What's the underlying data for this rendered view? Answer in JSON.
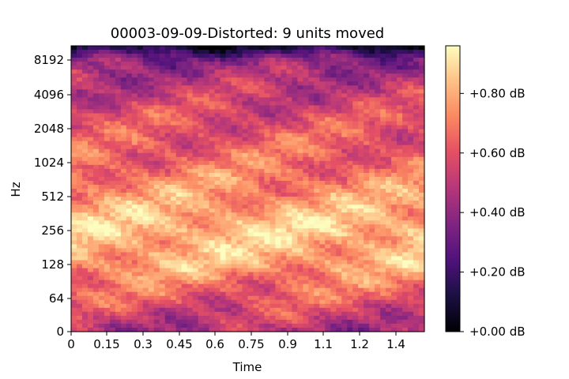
{
  "chart_data": {
    "type": "heatmap",
    "title": "00003-09-09-Distorted: 9 units moved",
    "xlabel": "Time",
    "ylabel": "Hz",
    "x_range": [
      0,
      1.5
    ],
    "x_ticks": [
      "0",
      "0.15",
      "0.3",
      "0.45",
      "0.6",
      "0.75",
      "0.9",
      "1.1",
      "1.2",
      "1.4"
    ],
    "y_scale": "log2 above 64 Hz, linear below",
    "y_ticks": [
      "0",
      "64",
      "128",
      "256",
      "512",
      "1024",
      "2048",
      "4096",
      "8192"
    ],
    "colormap": "magma",
    "colorbar": {
      "range": [
        0.0,
        0.96
      ],
      "ticks": [
        "+0.00 dB",
        "+0.20 dB",
        "+0.40 dB",
        "+0.60 dB",
        "+0.80 dB"
      ]
    },
    "intensity_profile_by_band": {
      "bands_hz": [
        0,
        64,
        128,
        256,
        512,
        1024,
        2048,
        4096,
        8192,
        11025
      ],
      "approx_level": [
        0.45,
        0.62,
        0.8,
        0.85,
        0.75,
        0.66,
        0.6,
        0.52,
        0.38,
        0.05
      ]
    },
    "legend": "colorbar right"
  }
}
